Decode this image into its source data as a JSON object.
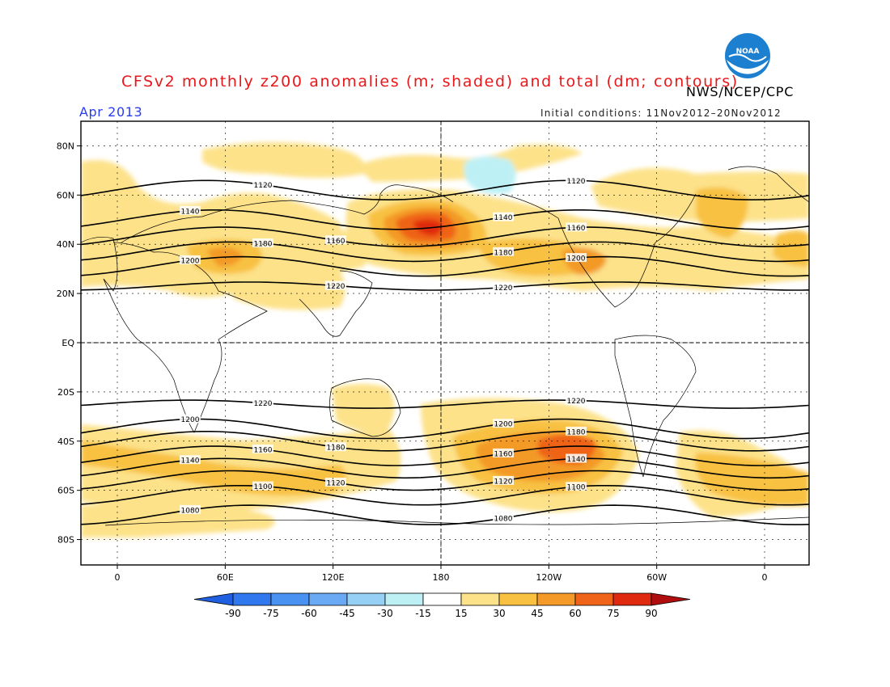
{
  "header": {
    "title": "CFSv2 monthly z200 anomalies (m; shaded) and total (dm; contours)",
    "period": "Apr 2013",
    "initial_conditions": "Initial conditions: 11Nov2012–20Nov2012",
    "agency": "NWS/NCEP/CPC",
    "logo_text": "NOAA"
  },
  "map": {
    "projection": "cylindrical equidistant",
    "lon_ticks": [
      "0",
      "60E",
      "120E",
      "180",
      "120W",
      "60W",
      "0"
    ],
    "lat_ticks": [
      "80N",
      "60N",
      "40N",
      "20N",
      "EQ",
      "20S",
      "40S",
      "60S",
      "80S"
    ],
    "contours_dm": [
      {
        "label": "1080",
        "lat": -70
      },
      {
        "label": "1100",
        "lat": -62
      },
      {
        "label": "1120",
        "lat": -56
      },
      {
        "label": "1140",
        "lat": -51
      },
      {
        "label": "1160",
        "lat": -46
      },
      {
        "label": "1180",
        "lat": -40
      },
      {
        "label": "1200",
        "lat": -35
      },
      {
        "label": "1220",
        "lat": -25
      },
      {
        "label": "1220",
        "lat": 23
      },
      {
        "label": "1200",
        "lat": 31
      },
      {
        "label": "1180",
        "lat": 37
      },
      {
        "label": "1160",
        "lat": 43
      },
      {
        "label": "1140",
        "lat": 50
      },
      {
        "label": "1120",
        "lat": 62
      }
    ],
    "anomaly_regions": [
      {
        "name": "North Pacific high",
        "lon": 178,
        "lat": 45,
        "peak_m": 75
      },
      {
        "name": "South Pacific high",
        "lon": 247,
        "lat": -47,
        "peak_m": 60
      },
      {
        "name": "Southern US high",
        "lon": 268,
        "lat": 33,
        "peak_m": 45
      },
      {
        "name": "Middle East high",
        "lon": 58,
        "lat": 35,
        "peak_m": 45
      },
      {
        "name": "Alaska low",
        "lon": 212,
        "lat": 70,
        "peak_m": -30
      }
    ]
  },
  "colorbar": {
    "labels": [
      "-90",
      "-75",
      "-60",
      "-45",
      "-30",
      "-15",
      "15",
      "30",
      "45",
      "60",
      "75",
      "90"
    ],
    "colors": [
      "#1f5fe0",
      "#2f78ee",
      "#4a92f2",
      "#6aaaf5",
      "#97d0f5",
      "#bdf0f5",
      "#ffffff",
      "#fde28a",
      "#f8c142",
      "#f39a28",
      "#ef6418",
      "#e02a10",
      "#b00e0e"
    ]
  }
}
